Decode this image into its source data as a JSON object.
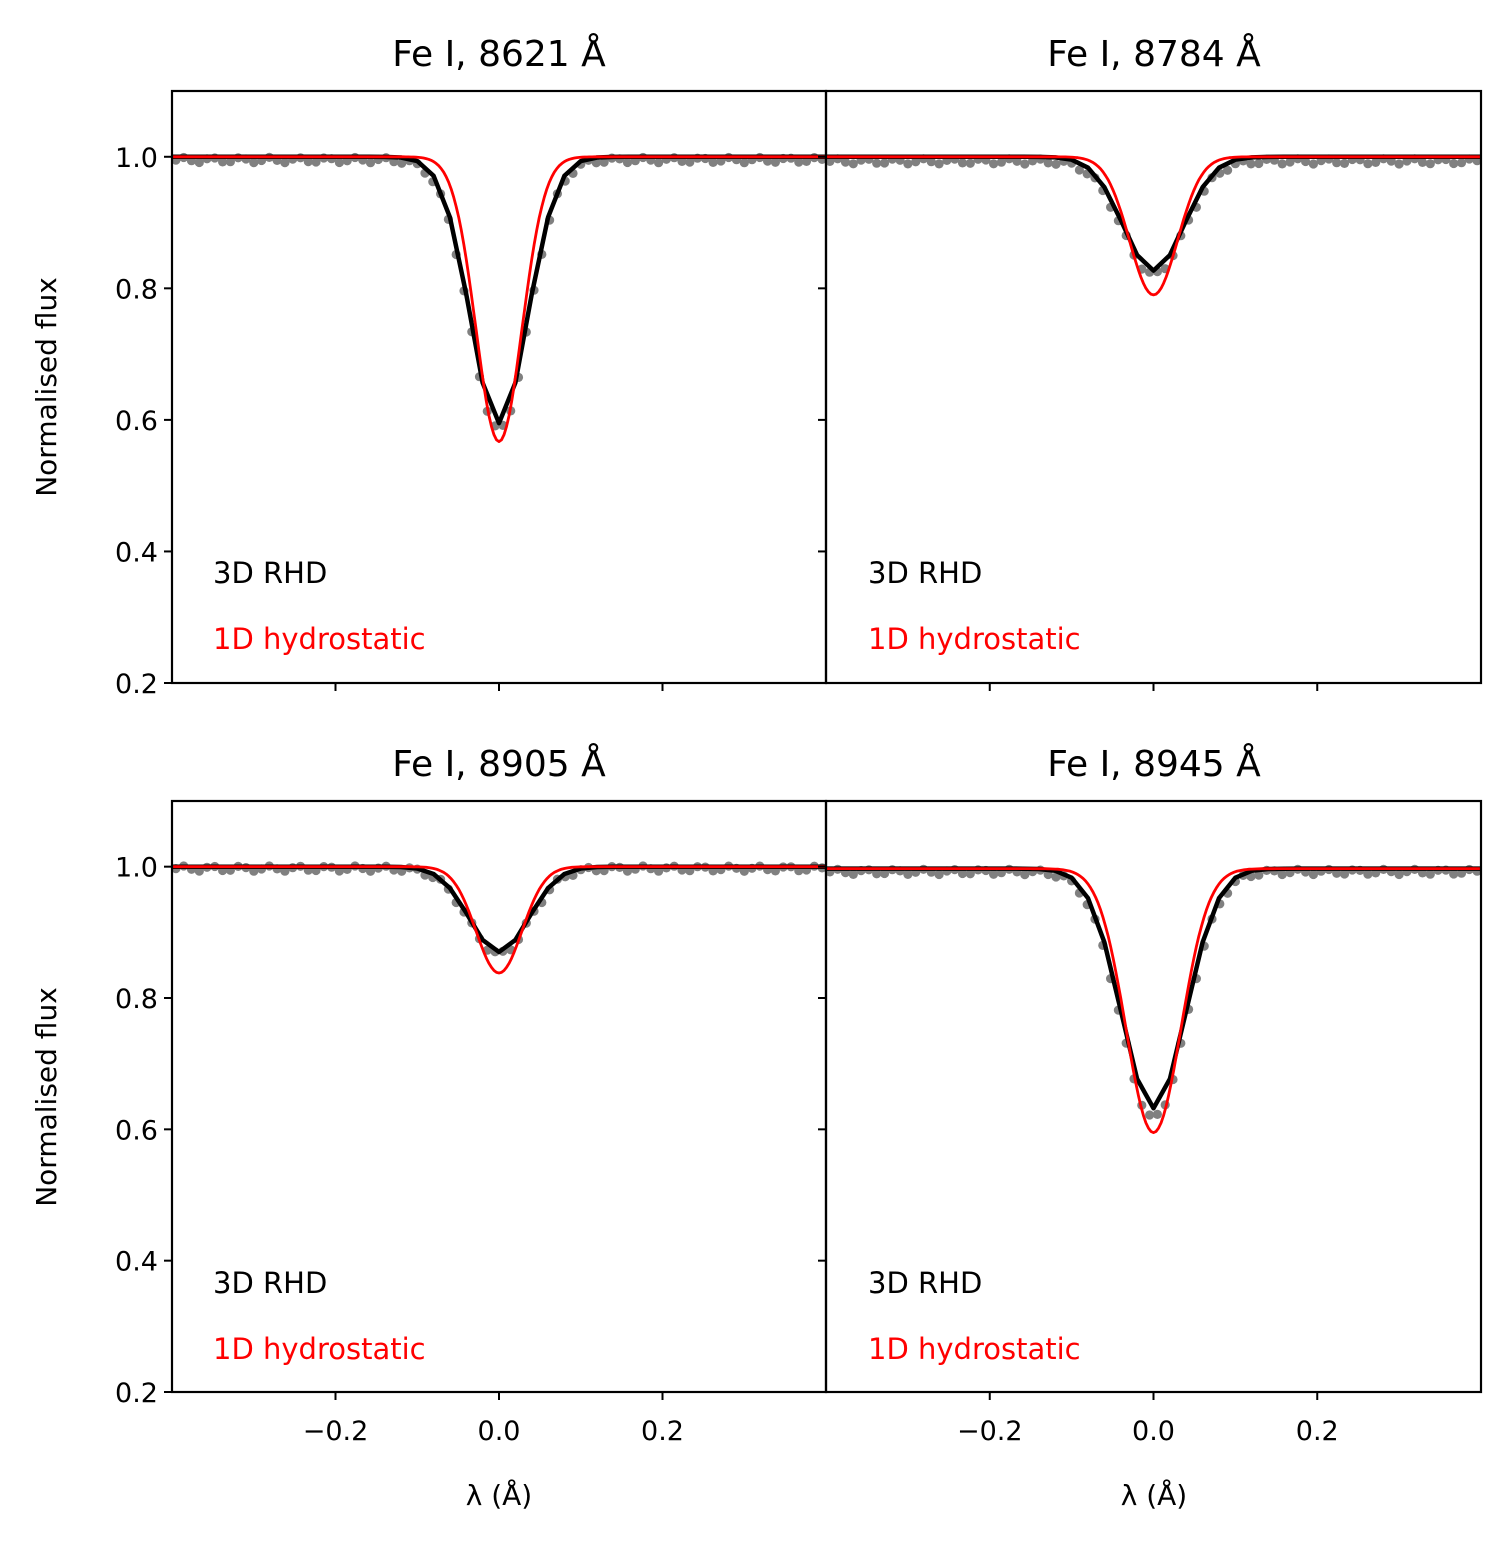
{
  "figure": {
    "ylabel": "Normalised flux",
    "xlabel": "λ (Å)",
    "legend": {
      "model_3d": "3D RHD",
      "model_1d": "1D hydrostatic",
      "placement": "bottom-left"
    },
    "colors": {
      "model_3d": "#000000",
      "model_1d": "#ff0000",
      "observed": "#808080"
    }
  },
  "chart_data": [
    {
      "type": "line",
      "title": "Fe I, 8621 Å",
      "xlim": [
        -0.4,
        0.4
      ],
      "ylim": [
        0.2,
        1.1
      ],
      "xticks": [
        -0.2,
        0.0,
        0.2
      ],
      "xtick_labels": [
        "−0.2",
        "0.0",
        "0.2"
      ],
      "yticks": [
        0.2,
        0.4,
        0.6,
        0.8,
        1.0
      ],
      "ytick_labels": [
        "0.2",
        "0.4",
        "0.6",
        "0.8",
        "1.0"
      ],
      "series": [
        {
          "name": "3D RHD",
          "depth": 0.405,
          "width": 0.082,
          "continuum": 1.0
        },
        {
          "name": "1D hydrostatic",
          "depth": 0.433,
          "width": 0.066,
          "continuum": 1.0
        },
        {
          "name": "observed",
          "depth": 0.41,
          "width": 0.084,
          "continuum": 0.995
        }
      ]
    },
    {
      "type": "line",
      "title": "Fe I, 8784 Å",
      "xlim": [
        -0.4,
        0.4
      ],
      "ylim": [
        0.2,
        1.1
      ],
      "xticks": [
        -0.2,
        0.0,
        0.2
      ],
      "xtick_labels": [
        "−0.2",
        "0.0",
        "0.2"
      ],
      "yticks": [
        0.2,
        0.4,
        0.6,
        0.8,
        1.0
      ],
      "ytick_labels": [
        "0.2",
        "0.4",
        "0.6",
        "0.8",
        "1.0"
      ],
      "series": [
        {
          "name": "3D RHD",
          "depth": 0.173,
          "width": 0.087,
          "continuum": 1.0
        },
        {
          "name": "1D hydrostatic",
          "depth": 0.21,
          "width": 0.069,
          "continuum": 1.0
        },
        {
          "name": "observed",
          "depth": 0.172,
          "width": 0.089,
          "continuum": 0.993
        }
      ]
    },
    {
      "type": "line",
      "title": "Fe I, 8905 Å",
      "xlim": [
        -0.4,
        0.4
      ],
      "ylim": [
        0.2,
        1.1
      ],
      "xticks": [
        -0.2,
        0.0,
        0.2
      ],
      "xtick_labels": [
        "−0.2",
        "0.0",
        "0.2"
      ],
      "yticks": [
        0.2,
        0.4,
        0.6,
        0.8,
        1.0
      ],
      "ytick_labels": [
        "0.2",
        "0.4",
        "0.6",
        "0.8",
        "1.0"
      ],
      "series": [
        {
          "name": "3D RHD",
          "depth": 0.13,
          "width": 0.085,
          "continuum": 1.0
        },
        {
          "name": "1D hydrostatic",
          "depth": 0.162,
          "width": 0.066,
          "continuum": 1.0
        },
        {
          "name": "observed",
          "depth": 0.13,
          "width": 0.087,
          "continuum": 0.997
        }
      ]
    },
    {
      "type": "line",
      "title": "Fe I, 8945 Å",
      "xlim": [
        -0.4,
        0.4
      ],
      "ylim": [
        0.2,
        1.1
      ],
      "xticks": [
        -0.2,
        0.0,
        0.2
      ],
      "xtick_labels": [
        "−0.2",
        "0.0",
        "0.2"
      ],
      "yticks": [
        0.2,
        0.4,
        0.6,
        0.8,
        1.0
      ],
      "ytick_labels": [
        "0.2",
        "0.4",
        "0.6",
        "0.8",
        "1.0"
      ],
      "series": [
        {
          "name": "3D RHD",
          "depth": 0.365,
          "width": 0.092,
          "continuum": 0.997
        },
        {
          "name": "1D hydrostatic",
          "depth": 0.402,
          "width": 0.079,
          "continuum": 0.997
        },
        {
          "name": "observed",
          "depth": 0.375,
          "width": 0.094,
          "continuum": 0.992
        }
      ]
    }
  ]
}
